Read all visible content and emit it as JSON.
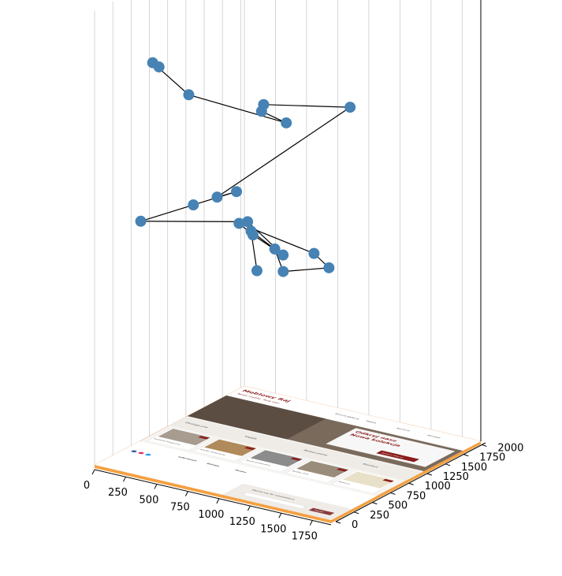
{
  "chart_data": {
    "type": "scatter",
    "projection": "3d",
    "marker_color": "#4682b4",
    "line_color": "#000000",
    "grid": true,
    "xlim": [
      0,
      1900
    ],
    "ylim": [
      0,
      2050
    ],
    "x_ticks": [
      "0",
      "250",
      "500",
      "750",
      "1000",
      "1250",
      "1500",
      "1750"
    ],
    "y_ticks": [
      "0",
      "250",
      "500",
      "750",
      "1000",
      "1250",
      "1500",
      "1750",
      "2000"
    ],
    "points": [
      [
        700,
        1030,
        370
      ],
      [
        600,
        1120,
        440
      ],
      [
        820,
        1070,
        420
      ],
      [
        905,
        1040,
        380
      ],
      [
        1120,
        1300,
        380
      ],
      [
        1135,
        1070,
        430
      ],
      [
        750,
        700,
        500
      ],
      [
        950,
        550,
        500
      ],
      [
        1180,
        570,
        470
      ],
      [
        1030,
        340,
        550
      ],
      [
        230,
        240,
        510
      ],
      [
        500,
        500,
        540
      ],
      [
        700,
        750,
        560
      ],
      [
        650,
        570,
        560
      ],
      [
        1290,
        1300,
        730
      ],
      [
        730,
        1070,
        720
      ],
      [
        790,
        940,
        720
      ],
      [
        1100,
        750,
        730
      ],
      [
        610,
        250,
        800
      ],
      [
        320,
        250,
        850
      ],
      [
        400,
        200,
        850
      ]
    ],
    "surface_image": {
      "brand": "Meblowy Raj",
      "tagline": "Twoje meble, Twój styl",
      "nav": [
        "Strona główna",
        "Meble",
        "Kuchnie",
        "Kontakt"
      ],
      "hero_title_line1": "Odkryj nasz",
      "hero_title_line2": "Nowa kolekcja",
      "hero_button": "Zobacz więcej",
      "categories": [
        "Ekologiczne",
        "Trwałe",
        "Nowoczesne",
        "Komfort"
      ],
      "products": [
        "Komoda klasyczna",
        "Szafka drewniana",
        "Szafa przesuwna",
        "Szafka RTV",
        "Materac"
      ],
      "badge": "-20%",
      "footer_columns": [
        "Informacje",
        "Zakupy",
        "Pomoc"
      ],
      "newsletter_label": "Zapisz się do newslettera",
      "newsletter_button": "Zapisz"
    }
  }
}
